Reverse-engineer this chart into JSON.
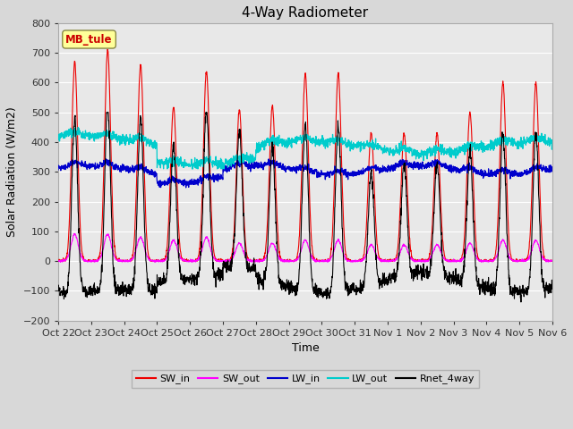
{
  "title": "4-Way Radiometer",
  "xlabel": "Time",
  "ylabel": "Solar Radiation (W/m2)",
  "ylim": [
    -200,
    800
  ],
  "yticks": [
    -200,
    -100,
    0,
    100,
    200,
    300,
    400,
    500,
    600,
    700,
    800
  ],
  "annotation_label": "MB_tule",
  "annotation_color": "#cc0000",
  "annotation_bg": "#ffff99",
  "fig_bg_color": "#d8d8d8",
  "plot_bg": "#e8e8e8",
  "n_days": 15,
  "x_tick_labels": [
    "Oct 22",
    "Oct 23",
    "Oct 24",
    "Oct 25",
    "Oct 26",
    "Oct 27",
    "Oct 28",
    "Oct 29",
    "Oct 30",
    "Oct 31",
    "Nov 1",
    "Nov 2",
    "Nov 3",
    "Nov 4",
    "Nov 5",
    "Nov 6"
  ],
  "SW_in_color": "#ee0000",
  "SW_out_color": "#ff00ff",
  "LW_in_color": "#0000cc",
  "LW_out_color": "#00cccc",
  "Rnet_color": "#000000",
  "legend_entries": [
    "SW_in",
    "SW_out",
    "LW_in",
    "LW_out",
    "Rnet_4way"
  ],
  "sw_in_peaks": [
    670,
    710,
    660,
    520,
    640,
    510,
    520,
    630,
    630,
    430,
    430,
    430,
    500,
    600,
    600
  ],
  "sw_out_peaks": [
    90,
    90,
    80,
    70,
    80,
    60,
    60,
    70,
    70,
    55,
    55,
    55,
    60,
    70,
    70
  ]
}
